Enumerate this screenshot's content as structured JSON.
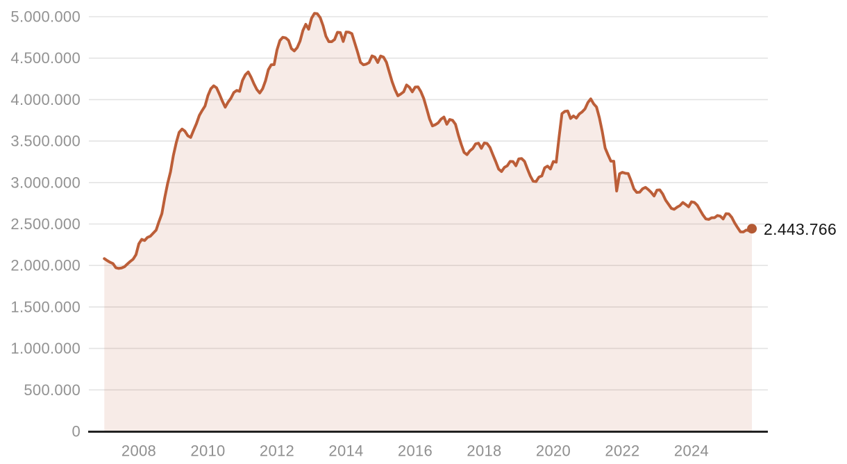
{
  "chart_data": {
    "type": "area",
    "title": "",
    "legend": "none",
    "grid": "horizontal",
    "x_axis": {
      "interval": "monthly",
      "start_year": 2007,
      "start_month": 1,
      "end_year": 2025,
      "end_month": 10,
      "tick_years": [
        2008,
        2010,
        2012,
        2014,
        2016,
        2018,
        2020,
        2022,
        2024
      ],
      "tick_labels": [
        "2008",
        "2010",
        "2012",
        "2014",
        "2016",
        "2018",
        "2020",
        "2022",
        "2024"
      ]
    },
    "y_axis": {
      "min": 0,
      "max": 5000000,
      "tick_values": [
        0,
        500000,
        1000000,
        1500000,
        2000000,
        2500000,
        3000000,
        3500000,
        4000000,
        4500000,
        5000000
      ],
      "tick_labels": [
        "0",
        "500.000",
        "1.000.000",
        "1.500.000",
        "2.000.000",
        "2.500.000",
        "3.000.000",
        "3.500.000",
        "4.000.000",
        "4.500.000",
        "5.000.000"
      ]
    },
    "end_point": {
      "value": 2443766,
      "label": "2.443.766"
    },
    "series": [
      {
        "name": "monthly-values",
        "values": [
          2082508,
          2059262,
          2038537,
          2023090,
          1973231,
          1965054,
          1970549,
          1984551,
          2017363,
          2048577,
          2075330,
          2129547,
          2261925,
          2315331,
          2300975,
          2338517,
          2353575,
          2390424,
          2426916,
          2530001,
          2625368,
          2818026,
          2989269,
          3128963,
          3327801,
          3481859,
          3605402,
          3644880,
          3620139,
          3564889,
          3544095,
          3629080,
          3709447,
          3808353,
          3868946,
          3923603,
          4048493,
          4130625,
          4166613,
          4142425,
          4066202,
          3982368,
          3908578,
          3969661,
          4017763,
          4085976,
          4110294,
          4100073,
          4231003,
          4299263,
          4333669,
          4269360,
          4189659,
          4121801,
          4079742,
          4130927,
          4226744,
          4360926,
          4420462,
          4422359,
          4599829,
          4712098,
          4750867,
          4744235,
          4714122,
          4615269,
          4587455,
          4625634,
          4705279,
          4833521,
          4907817,
          4848723,
          4980778,
          5040222,
          5035243,
          4989193,
          4890928,
          4763680,
          4698814,
          4698783,
          4724355,
          4811383,
          4808908,
          4701338,
          4814435,
          4812486,
          4795866,
          4684301,
          4572385,
          4449701,
          4419860,
          4427930,
          4447650,
          4526804,
          4512116,
          4447711,
          4525691,
          4512153,
          4451939,
          4333016,
          4215031,
          4120304,
          4046276,
          4067955,
          4094042,
          4176369,
          4149298,
          4093508,
          4150755,
          4152986,
          4094770,
          4011171,
          3891403,
          3767054,
          3683061,
          3697496,
          3720297,
          3764982,
          3789823,
          3702974,
          3760231,
          3750876,
          3702317,
          3573036,
          3461128,
          3362811,
          3335924,
          3382324,
          3410182,
          3467026,
          3474281,
          3412781,
          3476528,
          3470248,
          3422551,
          3335868,
          3252130,
          3162162,
          3132844,
          3182666,
          3202509,
          3254703,
          3252867,
          3202297,
          3285761,
          3289040,
          3255084,
          3163566,
          3079491,
          3015686,
          3011433,
          3065804,
          3079711,
          3177659,
          3198184,
          3163605,
          3253853,
          3246047,
          3548312,
          3831203,
          3857776,
          3862883,
          3773034,
          3802814,
          3776485,
          3826043,
          3851312,
          3888137,
          3964353,
          4008789,
          3949640,
          3910628,
          3781250,
          3614339,
          3416498,
          3333915,
          3257802,
          3257068,
          2898000,
          3105905,
          3123078,
          3111684,
          3108763,
          3022503,
          2922991,
          2880582,
          2883812,
          2924240,
          2941665,
          2914892,
          2881380,
          2837653,
          2908397,
          2911015,
          2862260,
          2788370,
          2739110,
          2688842,
          2677503,
          2702700,
          2722468,
          2759404,
          2734831,
          2707456,
          2767860,
          2760408,
          2727003,
          2666500,
          2607850,
          2561067,
          2555622,
          2575285,
          2575952,
          2602054,
          2594573,
          2560718,
          2624979,
          2621252,
          2580138,
          2512718,
          2457665,
          2405963,
          2404606,
          2426511,
          2421665,
          2443766
        ]
      }
    ]
  },
  "colors": {
    "line": "#bc5e38",
    "marker": "#b45a34",
    "fill": "rgba(188,93,55,0.12)",
    "grid": "#e3e3e3",
    "axis": "#212121",
    "tick_label": "#929292",
    "value_label": "#161616",
    "background": "#ffffff"
  }
}
